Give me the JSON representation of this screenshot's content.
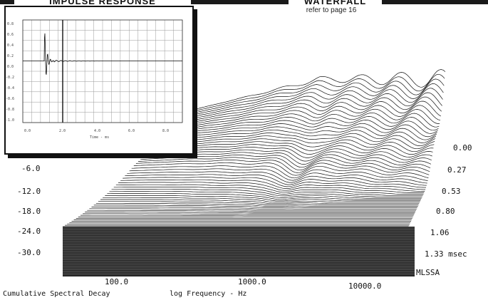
{
  "chart_data": [
    {
      "type": "line",
      "title": "IMPULSE RESPONSE",
      "xlabel": "Time - ms",
      "y_ticks": [
        "0.8",
        "0.6",
        "0.4",
        "0.2",
        "0.0",
        "-0.2",
        "-0.4",
        "-0.6",
        "-0.8",
        "-1.0"
      ],
      "x_ticks": [
        "0.0",
        "2.0",
        "4.0",
        "6.0",
        "8.0"
      ],
      "grid": true
    },
    {
      "type": "area",
      "title": "WATERFALL",
      "subtitle": "refer to page 16",
      "xlabel": "log Frequency - Hz",
      "footer": "Cumulative Spectral Decay",
      "x_ticks": [
        "100.0",
        "1000.0",
        "10000.0"
      ],
      "y_ticks": [
        "-6.0",
        "-12.0",
        "-18.0",
        "-24.0",
        "-30.0"
      ],
      "z_ticks": [
        "0.00",
        "0.27",
        "0.53",
        "0.80",
        "1.06",
        "1.33 msec"
      ],
      "brand": "MLSSA"
    }
  ]
}
